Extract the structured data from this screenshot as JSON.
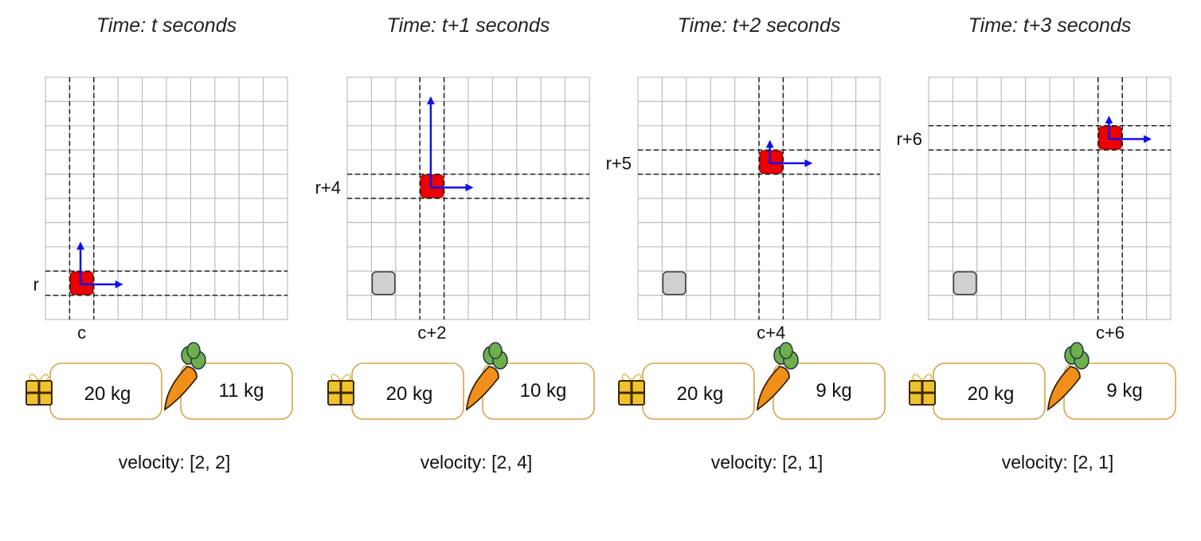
{
  "grid": {
    "rows": 10,
    "cols": 10
  },
  "colors": {
    "grid_line": "#bdbdbd",
    "guide_line": "#222222",
    "agent": "#ee0000",
    "obstacle": "#d0d0d0",
    "arrow": "#1010ee",
    "box_border": "#d8a24a",
    "gift": "#f2c12e",
    "carrot": "#f0901a",
    "carrot_leaf": "#6db04a"
  },
  "panels": [
    {
      "title": "Time: t seconds",
      "row_label": "r",
      "col_label": "c",
      "agent_cell": {
        "row": 8,
        "col": 1
      },
      "obstacle_cell": null,
      "inventory": {
        "gift_weight": "20 kg",
        "carrot_weight": "11 kg"
      },
      "velocity": "velocity: [2, 2]",
      "arrow_up_cells": 1.5,
      "arrow_right_cells": 1.5
    },
    {
      "title": "Time: t+1 seconds",
      "row_label": "r+4",
      "col_label": "c+2",
      "agent_cell": {
        "row": 4,
        "col": 3
      },
      "obstacle_cell": {
        "row": 8,
        "col": 1
      },
      "inventory": {
        "gift_weight": "20 kg",
        "carrot_weight": "10 kg"
      },
      "velocity": "velocity: [2, 4]",
      "arrow_up_cells": 3.5,
      "arrow_right_cells": 1.5
    },
    {
      "title": "Time: t+2 seconds",
      "row_label": "r+5",
      "col_label": "c+4",
      "agent_cell": {
        "row": 3,
        "col": 5
      },
      "obstacle_cell": {
        "row": 8,
        "col": 1
      },
      "inventory": {
        "gift_weight": "20 kg",
        "carrot_weight": "9 kg"
      },
      "velocity": "velocity: [2, 1]",
      "arrow_up_cells": 0.7,
      "arrow_right_cells": 1.5
    },
    {
      "title": "Time: t+3 seconds",
      "row_label": "r+6",
      "col_label": "c+6",
      "agent_cell": {
        "row": 2,
        "col": 7
      },
      "obstacle_cell": {
        "row": 8,
        "col": 1
      },
      "inventory": {
        "gift_weight": "20 kg",
        "carrot_weight": "9 kg"
      },
      "velocity": "velocity: [2, 1]",
      "arrow_up_cells": 0.7,
      "arrow_right_cells": 1.5
    }
  ]
}
